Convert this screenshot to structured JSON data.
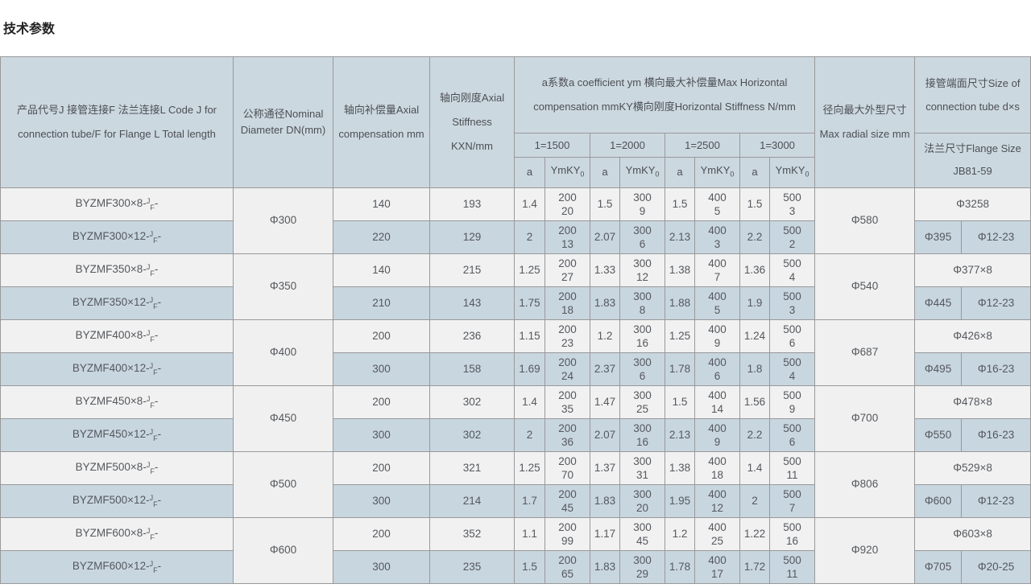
{
  "page_title": "技术参数",
  "colors": {
    "header_bg": "#ccd8e0",
    "row_light_bg": "#f1f1f1",
    "row_blue_bg": "#c8d6e0",
    "border": "#999999",
    "text": "#55585d"
  },
  "table": {
    "headers": {
      "product": "产品代号J 接管连接F 法兰连接L Code J for connection tube/F for Flange L Total length",
      "dn": "公称通径Nominal Diameter DN(mm)",
      "axial_compensation": "轴向补偿量Axial compensation mm",
      "axial_stiffness": "轴向刚度Axial Stiffness KXN/mm",
      "horizontal_group": "a系数a coefficient ym 横向最大补偿量Max Horizontal compensation mmKY横向刚度Horizontal Stiffness N/mm",
      "length_columns": [
        "1=1500",
        "1=2000",
        "1=2500",
        "1=3000"
      ],
      "a_label": "a",
      "ym_label": "YmKY",
      "ym_label_subscript": "0",
      "radial": "径向最大外型尺寸 Max radial size mm",
      "tube": "接管端面尺寸Size of connection tube d×s",
      "flange": "法兰尺寸Flange Size JB81-59"
    },
    "code_format": {
      "sup": "J",
      "sub": "F",
      "suffix": "-"
    },
    "groups": [
      {
        "dn": "Φ300",
        "radial_size": "Φ580",
        "tube_size": "Φ3258",
        "flange_od": "Φ395",
        "flange_bolt": "Φ12-23",
        "rows": [
          {
            "code_prefix": "BYZMF300×8-",
            "axial_compensation": "140",
            "axial_stiffness": "193",
            "horizontal": [
              {
                "a": "1.4",
                "ym": "200",
                "ky0": "20"
              },
              {
                "a": "1.5",
                "ym": "300",
                "ky0": "9"
              },
              {
                "a": "1.5",
                "ym": "400",
                "ky0": "5"
              },
              {
                "a": "1.5",
                "ym": "500",
                "ky0": "3"
              }
            ]
          },
          {
            "code_prefix": "BYZMF300×12-",
            "axial_compensation": "220",
            "axial_stiffness": "129",
            "horizontal": [
              {
                "a": "2",
                "ym": "200",
                "ky0": "13"
              },
              {
                "a": "2.07",
                "ym": "300",
                "ky0": "6"
              },
              {
                "a": "2.13",
                "ym": "400",
                "ky0": "3"
              },
              {
                "a": "2.2",
                "ym": "500",
                "ky0": "2"
              }
            ]
          }
        ]
      },
      {
        "dn": "Φ350",
        "radial_size": "Φ540",
        "tube_size": "Φ377×8",
        "flange_od": "Φ445",
        "flange_bolt": "Φ12-23",
        "rows": [
          {
            "code_prefix": "BYZMF350×8-",
            "axial_compensation": "140",
            "axial_stiffness": "215",
            "horizontal": [
              {
                "a": "1.25",
                "ym": "200",
                "ky0": "27"
              },
              {
                "a": "1.33",
                "ym": "300",
                "ky0": "12"
              },
              {
                "a": "1.38",
                "ym": "400",
                "ky0": "7"
              },
              {
                "a": "1.36",
                "ym": "500",
                "ky0": "4"
              }
            ]
          },
          {
            "code_prefix": "BYZMF350×12-",
            "axial_compensation": "210",
            "axial_stiffness": "143",
            "horizontal": [
              {
                "a": "1.75",
                "ym": "200",
                "ky0": "18"
              },
              {
                "a": "1.83",
                "ym": "300",
                "ky0": "8"
              },
              {
                "a": "1.88",
                "ym": "400",
                "ky0": "5"
              },
              {
                "a": "1.9",
                "ym": "500",
                "ky0": "3"
              }
            ]
          }
        ]
      },
      {
        "dn": "Φ400",
        "radial_size": "Φ687",
        "tube_size": "Φ426×8",
        "flange_od": "Φ495",
        "flange_bolt": "Φ16-23",
        "rows": [
          {
            "code_prefix": "BYZMF400×8-",
            "axial_compensation": "200",
            "axial_stiffness": "236",
            "horizontal": [
              {
                "a": "1.15",
                "ym": "200",
                "ky0": "23"
              },
              {
                "a": "1.2",
                "ym": "300",
                "ky0": "16"
              },
              {
                "a": "1.25",
                "ym": "400",
                "ky0": "9"
              },
              {
                "a": "1.24",
                "ym": "500",
                "ky0": "6"
              }
            ]
          },
          {
            "code_prefix": "BYZMF400×12-",
            "axial_compensation": "300",
            "axial_stiffness": "158",
            "horizontal": [
              {
                "a": "1.69",
                "ym": "200",
                "ky0": "24"
              },
              {
                "a": "2.37",
                "ym": "300",
                "ky0": "6"
              },
              {
                "a": "1.78",
                "ym": "400",
                "ky0": "6"
              },
              {
                "a": "1.8",
                "ym": "500",
                "ky0": "4"
              }
            ]
          }
        ]
      },
      {
        "dn": "Φ450",
        "radial_size": "Φ700",
        "tube_size": "Φ478×8",
        "flange_od": "Φ550",
        "flange_bolt": "Φ16-23",
        "rows": [
          {
            "code_prefix": "BYZMF450×8-",
            "axial_compensation": "200",
            "axial_stiffness": "302",
            "horizontal": [
              {
                "a": "1.4",
                "ym": "200",
                "ky0": "35"
              },
              {
                "a": "1.47",
                "ym": "300",
                "ky0": "25"
              },
              {
                "a": "1.5",
                "ym": "400",
                "ky0": "14"
              },
              {
                "a": "1.56",
                "ym": "500",
                "ky0": "9"
              }
            ]
          },
          {
            "code_prefix": "BYZMF450×12-",
            "axial_compensation": "300",
            "axial_stiffness": "302",
            "horizontal": [
              {
                "a": "2",
                "ym": "200",
                "ky0": "36"
              },
              {
                "a": "2.07",
                "ym": "300",
                "ky0": "16"
              },
              {
                "a": "2.13",
                "ym": "400",
                "ky0": "9"
              },
              {
                "a": "2.2",
                "ym": "500",
                "ky0": "6"
              }
            ]
          }
        ]
      },
      {
        "dn": "Φ500",
        "radial_size": "Φ806",
        "tube_size": "Φ529×8",
        "flange_od": "Φ600",
        "flange_bolt": "Φ12-23",
        "rows": [
          {
            "code_prefix": "BYZMF500×8-",
            "axial_compensation": "200",
            "axial_stiffness": "321",
            "horizontal": [
              {
                "a": "1.25",
                "ym": "200",
                "ky0": "70"
              },
              {
                "a": "1.37",
                "ym": "300",
                "ky0": "31"
              },
              {
                "a": "1.38",
                "ym": "400",
                "ky0": "18"
              },
              {
                "a": "1.4",
                "ym": "500",
                "ky0": "11"
              }
            ]
          },
          {
            "code_prefix": "BYZMF500×12-",
            "axial_compensation": "300",
            "axial_stiffness": "214",
            "horizontal": [
              {
                "a": "1.7",
                "ym": "200",
                "ky0": "45"
              },
              {
                "a": "1.83",
                "ym": "300",
                "ky0": "20"
              },
              {
                "a": "1.95",
                "ym": "400",
                "ky0": "12"
              },
              {
                "a": "2",
                "ym": "500",
                "ky0": "7"
              }
            ]
          }
        ]
      },
      {
        "dn": "Φ600",
        "radial_size": "Φ920",
        "tube_size": "Φ603×8",
        "flange_od": "Φ705",
        "flange_bolt": "Φ20-25",
        "rows": [
          {
            "code_prefix": "BYZMF600×8-",
            "axial_compensation": "200",
            "axial_stiffness": "352",
            "horizontal": [
              {
                "a": "1.1",
                "ym": "200",
                "ky0": "99"
              },
              {
                "a": "1.17",
                "ym": "300",
                "ky0": "45"
              },
              {
                "a": "1.2",
                "ym": "400",
                "ky0": "25"
              },
              {
                "a": "1.22",
                "ym": "500",
                "ky0": "16"
              }
            ]
          },
          {
            "code_prefix": "BYZMF600×12-",
            "axial_compensation": "300",
            "axial_stiffness": "235",
            "horizontal": [
              {
                "a": "1.5",
                "ym": "200",
                "ky0": "65"
              },
              {
                "a": "1.83",
                "ym": "300",
                "ky0": "29"
              },
              {
                "a": "1.78",
                "ym": "400",
                "ky0": "17"
              },
              {
                "a": "1.72",
                "ym": "500",
                "ky0": "11"
              }
            ]
          }
        ]
      }
    ]
  }
}
